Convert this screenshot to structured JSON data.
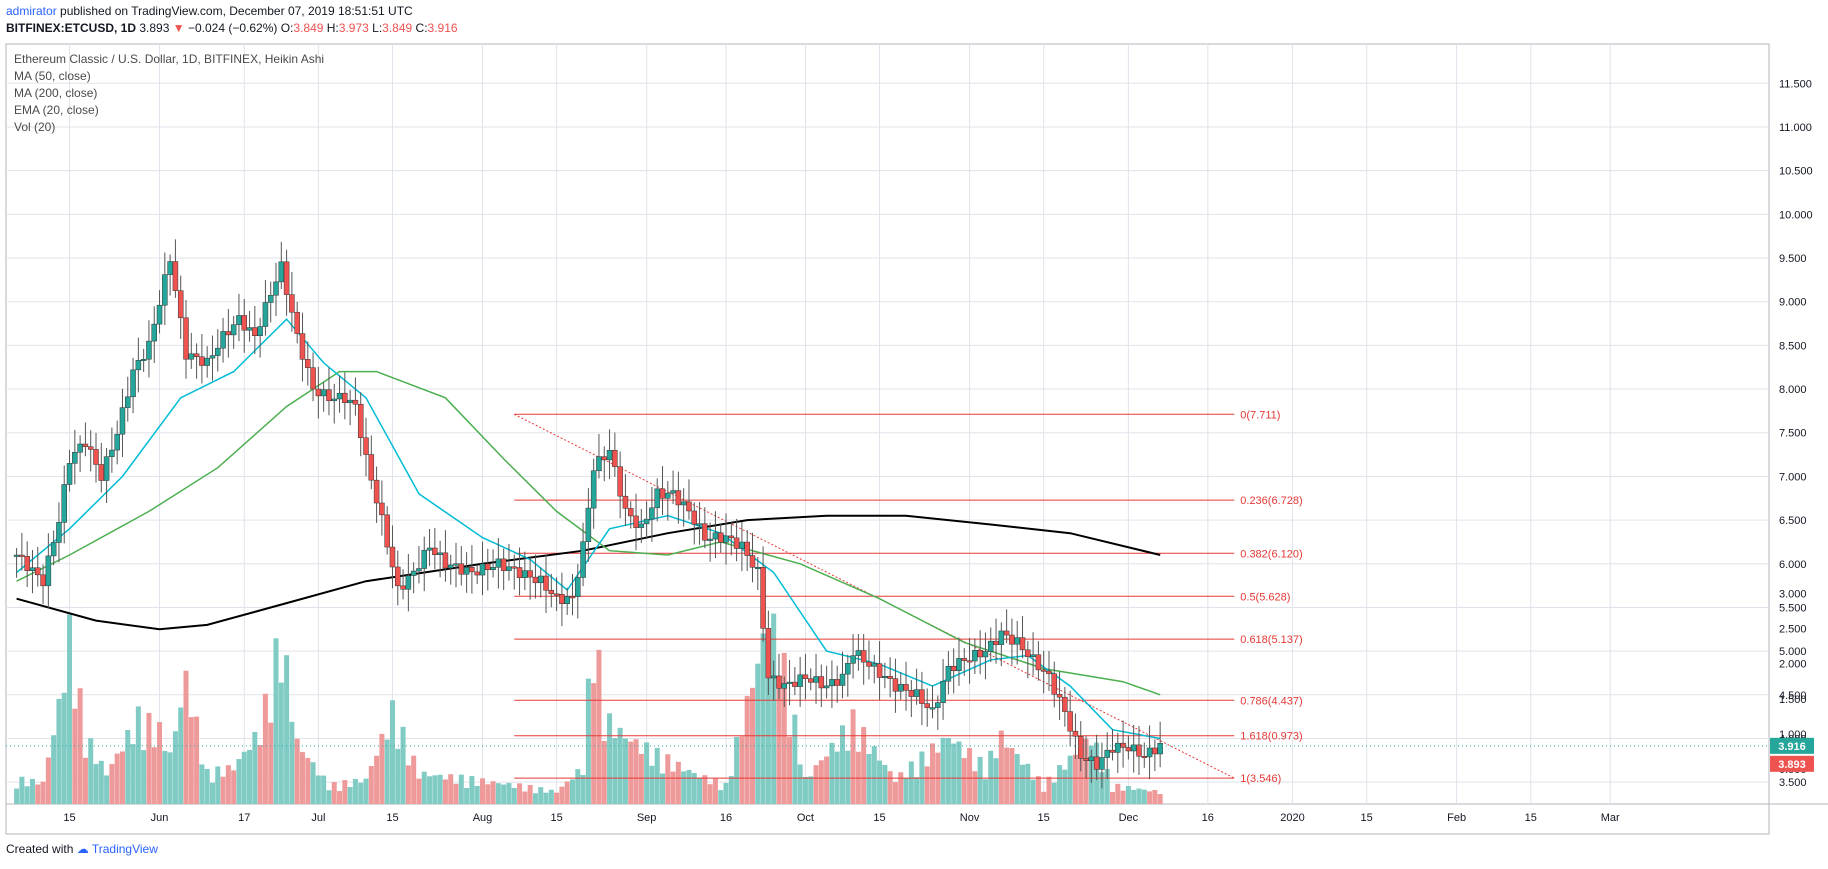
{
  "header": {
    "author": "admirator",
    "published_text": "published on TradingView.com, December 07, 2019 18:51:51 UTC",
    "symbol": "BITFINEX:ETCUSD, 1D",
    "last": "3.893",
    "change_arrow": "▼",
    "change": "−0.024 (−0.62%)",
    "o_label": "O:",
    "o": "3.849",
    "h_label": "H:",
    "h": "3.973",
    "l_label": "L:",
    "l": "3.849",
    "c_label": "C:",
    "c": "3.916"
  },
  "legend": {
    "title": "Ethereum Classic / U.S. Dollar, 1D, BITFINEX, Heikin Ashi",
    "ma50": "MA (50, close)",
    "ma200": "MA (200, close)",
    "ema20": "EMA (20, close)",
    "vol": "Vol (20)"
  },
  "footer": {
    "created_with": "Created with",
    "brand": "TradingView"
  },
  "colors": {
    "up": "#26a69a",
    "down": "#ef5350",
    "ma50": "#4caf50",
    "ma200": "#000000",
    "ema20": "#00bcd4",
    "fib": "#e53935",
    "grid": "#e0e3eb"
  },
  "chart_data": {
    "type": "candlestick",
    "price_axis_ticks": [
      "11.500",
      "11.000",
      "10.500",
      "10.000",
      "9.500",
      "9.000",
      "8.500",
      "8.000",
      "7.500",
      "7.000",
      "6.500",
      "6.000",
      "5.500",
      "5.000",
      "4.500",
      "4.000",
      "3.500"
    ],
    "volume_axis_ticks": [
      "3.000",
      "2.500",
      "2.000",
      "1.500",
      "1.000",
      "0.500"
    ],
    "price_ylim": [
      3.25,
      11.95
    ],
    "volume_ylim": [
      0,
      3.05
    ],
    "time_axis_labels": [
      "15",
      "Jun",
      "17",
      "Jul",
      "15",
      "Aug",
      "15",
      "Sep",
      "16",
      "Oct",
      "15",
      "Nov",
      "15",
      "Dec",
      "16",
      "2020",
      "15",
      "Feb",
      "15",
      "Mar"
    ],
    "last_price_labels": {
      "close": "3.916",
      "last": "3.893"
    },
    "fib_levels": [
      {
        "label": "0(7.711)",
        "value": 7.711
      },
      {
        "label": "0.236(6.728)",
        "value": 6.728
      },
      {
        "label": "0.382(6.120)",
        "value": 6.12
      },
      {
        "label": "0.5(5.628)",
        "value": 5.628
      },
      {
        "label": "0.618(5.137)",
        "value": 5.137
      },
      {
        "label": "0.786(4.437)",
        "value": 4.437
      },
      {
        "label": "1(3.546)",
        "value": 3.546
      }
    ],
    "fib_ext_level": {
      "label": "1.618(0.973)",
      "value": 0.973
    },
    "trendline": {
      "from": [
        "2019-08-07",
        7.711
      ],
      "to": [
        "2019-12-21",
        3.546
      ]
    },
    "closes": [
      [
        "2019-05-05",
        6.1
      ],
      [
        "2019-05-10",
        5.8
      ],
      [
        "2019-05-13",
        6.5
      ],
      [
        "2019-05-15",
        7.2
      ],
      [
        "2019-05-18",
        7.4
      ],
      [
        "2019-05-21",
        7.0
      ],
      [
        "2019-05-24",
        7.5
      ],
      [
        "2019-05-27",
        8.2
      ],
      [
        "2019-05-30",
        8.5
      ],
      [
        "2019-06-01",
        9.0
      ],
      [
        "2019-06-03",
        9.5
      ],
      [
        "2019-06-06",
        8.4
      ],
      [
        "2019-06-10",
        8.3
      ],
      [
        "2019-06-13",
        8.6
      ],
      [
        "2019-06-16",
        8.8
      ],
      [
        "2019-06-19",
        8.6
      ],
      [
        "2019-06-22",
        9.1
      ],
      [
        "2019-06-24",
        9.4
      ],
      [
        "2019-06-27",
        8.6
      ],
      [
        "2019-06-30",
        8.0
      ],
      [
        "2019-07-03",
        7.9
      ],
      [
        "2019-07-06",
        7.9
      ],
      [
        "2019-07-08",
        7.8
      ],
      [
        "2019-07-10",
        7.2
      ],
      [
        "2019-07-13",
        6.5
      ],
      [
        "2019-07-16",
        5.7
      ],
      [
        "2019-07-19",
        5.9
      ],
      [
        "2019-07-22",
        6.2
      ],
      [
        "2019-07-25",
        6.0
      ],
      [
        "2019-07-30",
        5.9
      ],
      [
        "2019-08-04",
        6.0
      ],
      [
        "2019-08-08",
        5.9
      ],
      [
        "2019-08-12",
        5.8
      ],
      [
        "2019-08-15",
        5.6
      ],
      [
        "2019-08-18",
        5.6
      ],
      [
        "2019-08-20",
        6.2
      ],
      [
        "2019-08-22",
        7.1
      ],
      [
        "2019-08-25",
        7.3
      ],
      [
        "2019-08-28",
        6.6
      ],
      [
        "2019-08-31",
        6.4
      ],
      [
        "2019-09-03",
        6.8
      ],
      [
        "2019-09-06",
        6.8
      ],
      [
        "2019-09-09",
        6.6
      ],
      [
        "2019-09-12",
        6.3
      ],
      [
        "2019-09-16",
        6.3
      ],
      [
        "2019-09-19",
        6.2
      ],
      [
        "2019-09-22",
        5.9
      ],
      [
        "2019-09-24",
        4.7
      ],
      [
        "2019-09-27",
        4.6
      ],
      [
        "2019-10-01",
        4.7
      ],
      [
        "2019-10-05",
        4.6
      ],
      [
        "2019-10-08",
        4.7
      ],
      [
        "2019-10-10",
        5.0
      ],
      [
        "2019-10-14",
        4.8
      ],
      [
        "2019-10-18",
        4.6
      ],
      [
        "2019-10-22",
        4.5
      ],
      [
        "2019-10-25",
        4.3
      ],
      [
        "2019-10-28",
        4.8
      ],
      [
        "2019-10-31",
        4.9
      ],
      [
        "2019-11-04",
        5.0
      ],
      [
        "2019-11-07",
        5.2
      ],
      [
        "2019-11-10",
        5.1
      ],
      [
        "2019-11-13",
        4.9
      ],
      [
        "2019-11-16",
        4.7
      ],
      [
        "2019-11-19",
        4.3
      ],
      [
        "2019-11-22",
        3.8
      ],
      [
        "2019-11-25",
        3.7
      ],
      [
        "2019-11-28",
        3.9
      ],
      [
        "2019-12-01",
        3.9
      ],
      [
        "2019-12-04",
        3.8
      ],
      [
        "2019-12-07",
        3.92
      ]
    ],
    "ma200": [
      [
        "2019-05-05",
        5.6
      ],
      [
        "2019-05-20",
        5.35
      ],
      [
        "2019-06-01",
        5.25
      ],
      [
        "2019-06-10",
        5.3
      ],
      [
        "2019-06-25",
        5.55
      ],
      [
        "2019-07-10",
        5.8
      ],
      [
        "2019-08-01",
        6.0
      ],
      [
        "2019-08-20",
        6.15
      ],
      [
        "2019-09-05",
        6.35
      ],
      [
        "2019-09-20",
        6.5
      ],
      [
        "2019-10-05",
        6.55
      ],
      [
        "2019-10-20",
        6.55
      ],
      [
        "2019-11-05",
        6.45
      ],
      [
        "2019-11-20",
        6.35
      ],
      [
        "2019-12-07",
        6.1
      ]
    ],
    "ma50": [
      [
        "2019-05-05",
        5.8
      ],
      [
        "2019-05-15",
        6.1
      ],
      [
        "2019-05-30",
        6.6
      ],
      [
        "2019-06-12",
        7.1
      ],
      [
        "2019-06-25",
        7.8
      ],
      [
        "2019-07-05",
        8.2
      ],
      [
        "2019-07-12",
        8.2
      ],
      [
        "2019-07-25",
        7.9
      ],
      [
        "2019-08-05",
        7.2
      ],
      [
        "2019-08-15",
        6.6
      ],
      [
        "2019-08-25",
        6.15
      ],
      [
        "2019-09-05",
        6.1
      ],
      [
        "2019-09-15",
        6.25
      ],
      [
        "2019-09-30",
        6.0
      ],
      [
        "2019-10-15",
        5.6
      ],
      [
        "2019-10-31",
        5.1
      ],
      [
        "2019-11-15",
        4.8
      ],
      [
        "2019-11-30",
        4.65
      ],
      [
        "2019-12-07",
        4.5
      ]
    ],
    "ema20": [
      [
        "2019-05-05",
        5.9
      ],
      [
        "2019-05-15",
        6.4
      ],
      [
        "2019-05-25",
        7.0
      ],
      [
        "2019-06-05",
        7.9
      ],
      [
        "2019-06-15",
        8.2
      ],
      [
        "2019-06-25",
        8.8
      ],
      [
        "2019-07-02",
        8.3
      ],
      [
        "2019-07-10",
        7.9
      ],
      [
        "2019-07-20",
        6.8
      ],
      [
        "2019-08-01",
        6.3
      ],
      [
        "2019-08-10",
        6.05
      ],
      [
        "2019-08-17",
        5.7
      ],
      [
        "2019-08-25",
        6.4
      ],
      [
        "2019-09-05",
        6.55
      ],
      [
        "2019-09-15",
        6.35
      ],
      [
        "2019-09-25",
        5.9
      ],
      [
        "2019-10-05",
        5.0
      ],
      [
        "2019-10-15",
        4.85
      ],
      [
        "2019-10-25",
        4.6
      ],
      [
        "2019-11-05",
        4.9
      ],
      [
        "2019-11-12",
        4.95
      ],
      [
        "2019-11-20",
        4.6
      ],
      [
        "2019-11-28",
        4.1
      ],
      [
        "2019-12-07",
        4.0
      ]
    ],
    "volume": [
      [
        "2019-05-05",
        0.4
      ],
      [
        "2019-05-10",
        0.35
      ],
      [
        "2019-05-13",
        1.6
      ],
      [
        "2019-05-15",
        2.75
      ],
      [
        "2019-05-18",
        1.1
      ],
      [
        "2019-05-22",
        0.5
      ],
      [
        "2019-05-28",
        1.4
      ],
      [
        "2019-06-01",
        1.2
      ],
      [
        "2019-06-03",
        0.8
      ],
      [
        "2019-06-06",
        2.05
      ],
      [
        "2019-06-10",
        0.5
      ],
      [
        "2019-06-15",
        0.6
      ],
      [
        "2019-06-20",
        1.2
      ],
      [
        "2019-06-24",
        2.75
      ],
      [
        "2019-06-27",
        1.0
      ],
      [
        "2019-07-03",
        0.3
      ],
      [
        "2019-07-10",
        0.4
      ],
      [
        "2019-07-15",
        1.5
      ],
      [
        "2019-07-20",
        0.5
      ],
      [
        "2019-07-30",
        0.4
      ],
      [
        "2019-08-08",
        0.3
      ],
      [
        "2019-08-15",
        0.2
      ],
      [
        "2019-08-20",
        0.6
      ],
      [
        "2019-08-22",
        3.0
      ],
      [
        "2019-08-24",
        1.4
      ],
      [
        "2019-08-28",
        1.1
      ],
      [
        "2019-09-03",
        0.8
      ],
      [
        "2019-09-10",
        0.5
      ],
      [
        "2019-09-16",
        0.3
      ],
      [
        "2019-09-24",
        3.0
      ],
      [
        "2019-09-26",
        2.6
      ],
      [
        "2019-10-01",
        0.4
      ],
      [
        "2019-10-10",
        1.35
      ],
      [
        "2019-10-18",
        0.4
      ],
      [
        "2019-10-28",
        1.1
      ],
      [
        "2019-11-04",
        0.6
      ],
      [
        "2019-11-07",
        1.1
      ],
      [
        "2019-11-15",
        0.3
      ],
      [
        "2019-11-24",
        1.1
      ],
      [
        "2019-11-28",
        0.3
      ],
      [
        "2019-12-07",
        0.2
      ]
    ]
  }
}
